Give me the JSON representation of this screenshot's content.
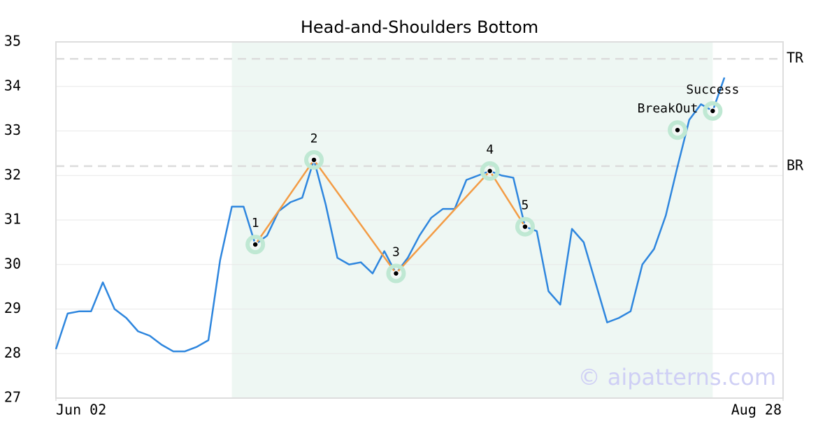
{
  "chart_data": {
    "type": "line",
    "title": "Head-and-Shoulders Bottom",
    "x": [
      0,
      1,
      2,
      3,
      4,
      5,
      6,
      7,
      8,
      9,
      10,
      11,
      12,
      13,
      14,
      15,
      16,
      17,
      18,
      19,
      20,
      21,
      22,
      23,
      24,
      25,
      26,
      27,
      28,
      29,
      30,
      31,
      32,
      33,
      34,
      35,
      36,
      37,
      38,
      39,
      40,
      41,
      42,
      43,
      44,
      45,
      46,
      47,
      48,
      49,
      50,
      51,
      52,
      53,
      54,
      55,
      56,
      57
    ],
    "series": [
      {
        "color": "#2e86de",
        "values": [
          28.1,
          28.9,
          28.95,
          28.95,
          29.6,
          29.0,
          28.8,
          28.5,
          28.4,
          28.2,
          28.05,
          28.05,
          28.15,
          28.3,
          30.1,
          31.3,
          31.3,
          30.45,
          30.65,
          31.2,
          31.4,
          31.5,
          32.35,
          31.35,
          30.15,
          30.0,
          30.05,
          29.8,
          30.3,
          29.8,
          30.15,
          30.65,
          31.05,
          31.25,
          31.25,
          31.9,
          32.0,
          32.1,
          32.0,
          31.95,
          30.85,
          30.75,
          29.4,
          29.1,
          30.8,
          30.5,
          29.6,
          28.7,
          28.8,
          28.95,
          30.0,
          30.35,
          31.1,
          32.2,
          33.25,
          33.6,
          33.45,
          34.2
        ]
      }
    ],
    "pattern": {
      "color": "#f39c45",
      "x": [
        17,
        22,
        29,
        37,
        40
      ],
      "values": [
        30.45,
        32.35,
        29.8,
        32.1,
        30.85
      ],
      "labels": [
        "1",
        "2",
        "3",
        "4",
        "5"
      ]
    },
    "signals": {
      "x": [
        53,
        56
      ],
      "values": [
        33.02,
        33.45
      ],
      "labels": [
        "BreakOut",
        "Success"
      ]
    },
    "levels": [
      {
        "label": "TR",
        "value": 34.62
      },
      {
        "label": "BR",
        "value": 32.21
      }
    ],
    "shade_x": [
      15,
      56
    ],
    "watermark": "© aipatterns.com",
    "xlim": [
      0,
      62
    ],
    "xticks": [
      {
        "value": 0,
        "label": "Jun 02"
      },
      {
        "value": 62,
        "label": "Aug 28"
      }
    ],
    "ylim": [
      27,
      35
    ],
    "yticks": [
      27,
      28,
      29,
      30,
      31,
      32,
      33,
      34,
      35
    ],
    "grid": true
  }
}
